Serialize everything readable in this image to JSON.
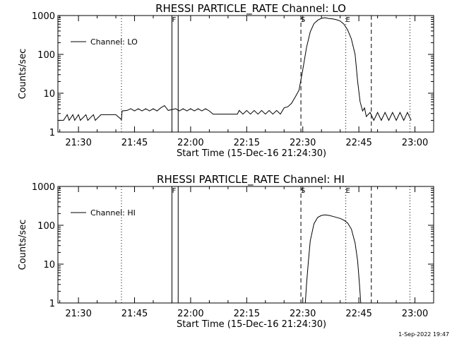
{
  "footer_date": "1-Sep-2022 19:47",
  "chart_data": [
    {
      "type": "line",
      "title": "RHESSI PARTICLE_RATE Channel: LO",
      "xlabel": "Start Time (15-Dec-16 21:24:30)",
      "ylabel": "Counts/sec",
      "legend": "Channel: LO",
      "legend_placement": "top-left",
      "y_scale": "log",
      "ylim": [
        1,
        1000
      ],
      "xlim": [
        "21:24:30",
        "23:05:00"
      ],
      "x_ticks": [
        "21:30",
        "21:45",
        "22:00",
        "22:15",
        "22:30",
        "22:45",
        "23:00"
      ],
      "y_ticks": [
        "1",
        "10",
        "100",
        "1000"
      ],
      "vertical_markers": [
        {
          "time": "21:41:30",
          "style": "dotted",
          "label": ""
        },
        {
          "time": "21:55:00",
          "style": "solid",
          "label": "F"
        },
        {
          "time": "21:56:40",
          "style": "solid",
          "label": ""
        },
        {
          "time": "22:29:30",
          "style": "dashed",
          "label": "S"
        },
        {
          "time": "22:41:30",
          "style": "dotted",
          "label": "E"
        },
        {
          "time": "22:48:20",
          "style": "dashed",
          "label": ""
        },
        {
          "time": "22:58:40",
          "style": "dotted",
          "label": ""
        }
      ],
      "series": [
        {
          "name": "Channel: LO",
          "points": [
            [
              "21:24:30",
              2
            ],
            [
              "21:26:00",
              2
            ],
            [
              "21:27:00",
              2.8
            ],
            [
              "21:27:30",
              2
            ],
            [
              "21:28:30",
              2.8
            ],
            [
              "21:29:00",
              2
            ],
            [
              "21:30:00",
              2.8
            ],
            [
              "21:30:30",
              2
            ],
            [
              "21:32:00",
              2.8
            ],
            [
              "21:32:30",
              2
            ],
            [
              "21:34:00",
              2.8
            ],
            [
              "21:34:30",
              2
            ],
            [
              "21:36:00",
              2.8
            ],
            [
              "21:36:30",
              2.8
            ],
            [
              "21:38:00",
              2.8
            ],
            [
              "21:40:00",
              2.8
            ],
            [
              "21:41:30",
              2.1
            ],
            [
              "21:41:40",
              3.5
            ],
            [
              "21:43:00",
              3.6
            ],
            [
              "21:44:00",
              4.0
            ],
            [
              "21:45:00",
              3.5
            ],
            [
              "21:46:00",
              4.0
            ],
            [
              "21:47:00",
              3.5
            ],
            [
              "21:48:00",
              4.0
            ],
            [
              "21:49:00",
              3.5
            ],
            [
              "21:50:00",
              4.0
            ],
            [
              "21:51:00",
              3.5
            ],
            [
              "21:52:00",
              4.2
            ],
            [
              "21:53:00",
              4.8
            ],
            [
              "21:54:00",
              3.6
            ],
            [
              "21:56:00",
              4.0
            ],
            [
              "21:57:00",
              3.5
            ],
            [
              "21:58:00",
              4.0
            ],
            [
              "21:59:00",
              3.5
            ],
            [
              "22:00:00",
              4.0
            ],
            [
              "22:01:00",
              3.5
            ],
            [
              "22:02:00",
              4.0
            ],
            [
              "22:03:00",
              3.5
            ],
            [
              "22:04:00",
              4.0
            ],
            [
              "22:05:00",
              3.5
            ],
            [
              "22:06:00",
              2.9
            ],
            [
              "22:10:00",
              2.9
            ],
            [
              "22:12:30",
              2.9
            ],
            [
              "22:13:00",
              3.6
            ],
            [
              "22:14:00",
              2.9
            ],
            [
              "22:15:00",
              3.6
            ],
            [
              "22:16:00",
              2.9
            ],
            [
              "22:17:00",
              3.6
            ],
            [
              "22:18:00",
              2.9
            ],
            [
              "22:19:00",
              3.6
            ],
            [
              "22:20:00",
              2.9
            ],
            [
              "22:21:00",
              3.6
            ],
            [
              "22:22:00",
              2.9
            ],
            [
              "22:23:00",
              3.6
            ],
            [
              "22:24:00",
              2.9
            ],
            [
              "22:25:00",
              4.2
            ],
            [
              "22:26:00",
              4.5
            ],
            [
              "22:27:00",
              5.5
            ],
            [
              "22:28:00",
              8
            ],
            [
              "22:29:00",
              12
            ],
            [
              "22:30:00",
              40
            ],
            [
              "22:31:00",
              150
            ],
            [
              "22:32:00",
              380
            ],
            [
              "22:33:00",
              620
            ],
            [
              "22:34:00",
              760
            ],
            [
              "22:35:00",
              850
            ],
            [
              "22:36:00",
              880
            ],
            [
              "22:37:00",
              840
            ],
            [
              "22:38:00",
              820
            ],
            [
              "22:39:00",
              780
            ],
            [
              "22:40:00",
              720
            ],
            [
              "22:41:00",
              600
            ],
            [
              "22:42:00",
              430
            ],
            [
              "22:43:00",
              250
            ],
            [
              "22:44:00",
              100
            ],
            [
              "22:44:40",
              20
            ],
            [
              "22:45:20",
              6
            ],
            [
              "22:46:00",
              3.5
            ],
            [
              "22:46:30",
              4.2
            ],
            [
              "22:47:00",
              2.5
            ],
            [
              "22:48:00",
              3.2
            ],
            [
              "22:49:00",
              2
            ],
            [
              "22:50:00",
              3.2
            ],
            [
              "22:51:00",
              2
            ],
            [
              "22:52:00",
              3.2
            ],
            [
              "22:53:00",
              2
            ],
            [
              "22:54:00",
              3.2
            ],
            [
              "22:55:00",
              2
            ],
            [
              "22:56:00",
              3.2
            ],
            [
              "22:57:00",
              2
            ],
            [
              "22:58:00",
              3.2
            ],
            [
              "22:59:00",
              2
            ]
          ]
        }
      ]
    },
    {
      "type": "line",
      "title": "RHESSI PARTICLE_RATE Channel: HI",
      "xlabel": "Start Time (15-Dec-16 21:24:30)",
      "ylabel": "Counts/sec",
      "legend": "Channel: HI",
      "legend_placement": "top-left",
      "y_scale": "log",
      "ylim": [
        1,
        1000
      ],
      "xlim": [
        "21:24:30",
        "23:05:00"
      ],
      "x_ticks": [
        "21:30",
        "21:45",
        "22:00",
        "22:15",
        "22:30",
        "22:45",
        "23:00"
      ],
      "y_ticks": [
        "1",
        "10",
        "100",
        "1000"
      ],
      "vertical_markers": [
        {
          "time": "21:41:30",
          "style": "dotted",
          "label": ""
        },
        {
          "time": "21:55:00",
          "style": "solid",
          "label": "F"
        },
        {
          "time": "21:56:40",
          "style": "solid",
          "label": ""
        },
        {
          "time": "22:29:30",
          "style": "dashed",
          "label": "S"
        },
        {
          "time": "22:41:30",
          "style": "dotted",
          "label": "E"
        },
        {
          "time": "22:48:20",
          "style": "dashed",
          "label": ""
        },
        {
          "time": "22:58:40",
          "style": "dotted",
          "label": ""
        }
      ],
      "series": [
        {
          "name": "Channel: HI",
          "points": [
            [
              "22:30:40",
              1
            ],
            [
              "22:31:00",
              3
            ],
            [
              "22:31:30",
              12
            ],
            [
              "22:32:00",
              40
            ],
            [
              "22:33:00",
              110
            ],
            [
              "22:34:00",
              160
            ],
            [
              "22:35:00",
              180
            ],
            [
              "22:36:00",
              185
            ],
            [
              "22:37:00",
              180
            ],
            [
              "22:38:00",
              170
            ],
            [
              "22:39:00",
              160
            ],
            [
              "22:40:00",
              150
            ],
            [
              "22:41:00",
              135
            ],
            [
              "22:42:00",
              115
            ],
            [
              "22:43:00",
              80
            ],
            [
              "22:44:00",
              35
            ],
            [
              "22:44:40",
              12
            ],
            [
              "22:45:10",
              3
            ],
            [
              "22:45:30",
              1
            ]
          ]
        }
      ]
    }
  ]
}
